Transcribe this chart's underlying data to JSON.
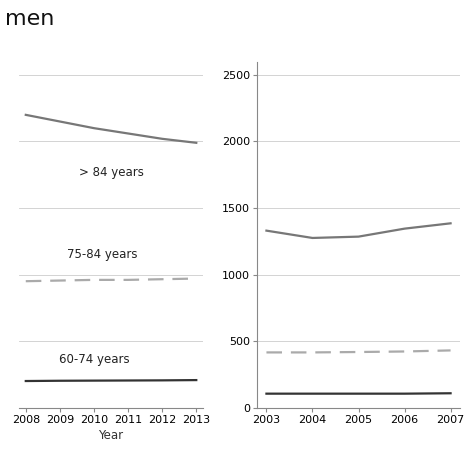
{
  "title": "men",
  "left_panel": {
    "xlabel": "Year",
    "years": [
      2008,
      2009,
      2010,
      2011,
      2012,
      2013
    ],
    "line_84_plus": [
      2200,
      2150,
      2100,
      2060,
      2020,
      1990
    ],
    "line_75_84": [
      950,
      955,
      960,
      960,
      965,
      970
    ],
    "line_60_74": [
      200,
      202,
      203,
      204,
      205,
      207
    ],
    "label_84": "> 84 years",
    "label_75": "75-84 years",
    "label_60": "60-74 years",
    "ylim": [
      0,
      2600
    ],
    "yticks": [],
    "grid_vals": [
      500,
      1000,
      1500,
      2000,
      2500
    ]
  },
  "right_panel": {
    "years": [
      2003,
      2004,
      2005,
      2006,
      2007
    ],
    "line_84_plus": [
      1330,
      1275,
      1285,
      1345,
      1385
    ],
    "line_75_84": [
      415,
      415,
      418,
      422,
      430
    ],
    "line_60_74": [
      105,
      105,
      105,
      105,
      108
    ],
    "ylim": [
      0,
      2600
    ],
    "yticks": [
      0,
      500,
      1000,
      1500,
      2000,
      2500
    ],
    "grid_vals": [
      500,
      1000,
      1500,
      2000,
      2500
    ]
  },
  "line_color_84": "#777777",
  "line_color_75": "#aaaaaa",
  "line_color_60": "#333333",
  "grid_color": "#cccccc",
  "bg_color": "#ffffff",
  "title_fontsize": 16,
  "label_fontsize": 8.5,
  "tick_fontsize": 8
}
